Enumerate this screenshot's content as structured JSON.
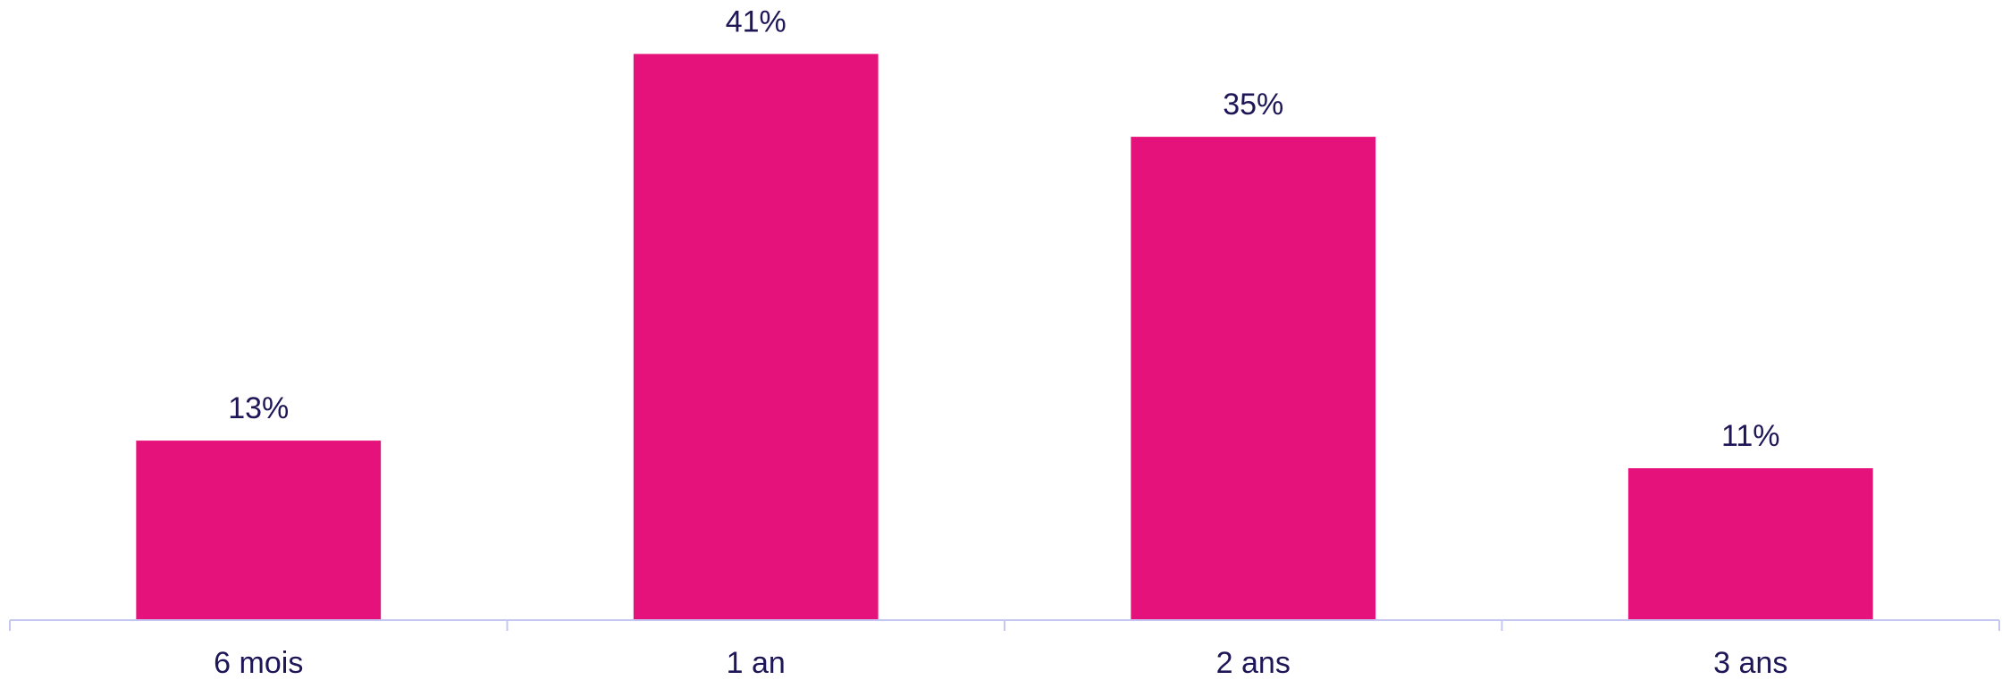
{
  "chart_data": {
    "type": "bar",
    "categories": [
      "6 mois",
      "1 an",
      "2 ans",
      "3 ans"
    ],
    "values": [
      13,
      41,
      35,
      11
    ],
    "value_labels": [
      "13%",
      "41%",
      "35%",
      "11%"
    ],
    "color": "#e6127c",
    "ylim": [
      0,
      44
    ]
  }
}
